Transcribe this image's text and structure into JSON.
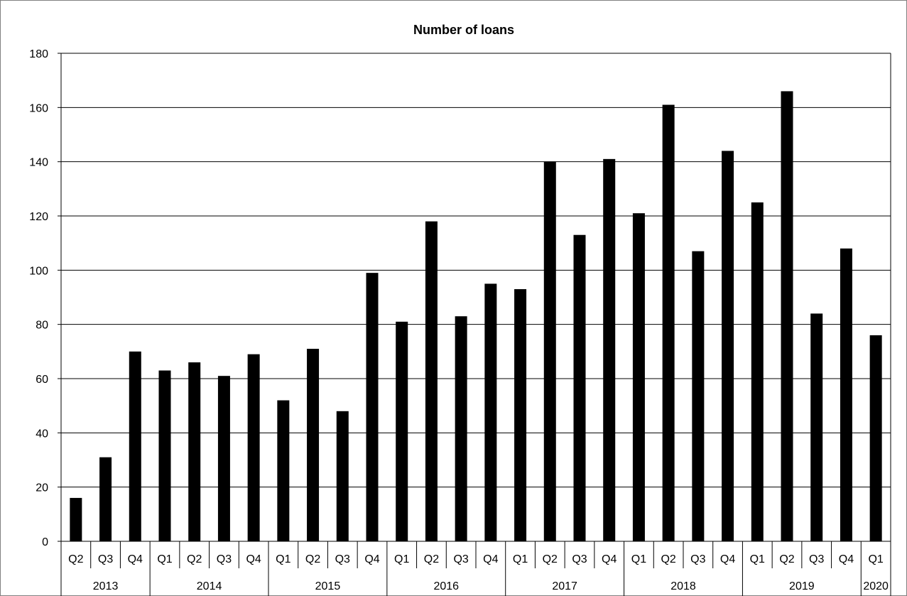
{
  "chart_data": {
    "type": "bar",
    "title": "Number of loans",
    "xlabel": "",
    "ylabel": "",
    "ylim": [
      0,
      180
    ],
    "yticks": [
      0,
      20,
      40,
      60,
      80,
      100,
      120,
      140,
      160,
      180
    ],
    "grid": true,
    "legend": "none",
    "categories": [
      "Q2",
      "Q3",
      "Q4",
      "Q1",
      "Q2",
      "Q3",
      "Q4",
      "Q1",
      "Q2",
      "Q3",
      "Q4",
      "Q1",
      "Q2",
      "Q3",
      "Q4",
      "Q1",
      "Q2",
      "Q3",
      "Q4",
      "Q1",
      "Q2",
      "Q3",
      "Q4",
      "Q1",
      "Q2",
      "Q3",
      "Q4",
      "Q1"
    ],
    "year_groups": [
      {
        "label": "2013",
        "count": 3
      },
      {
        "label": "2014",
        "count": 4
      },
      {
        "label": "2015",
        "count": 4
      },
      {
        "label": "2016",
        "count": 4
      },
      {
        "label": "2017",
        "count": 4
      },
      {
        "label": "2018",
        "count": 4
      },
      {
        "label": "2019",
        "count": 4
      },
      {
        "label": "2020",
        "count": 1
      }
    ],
    "values": [
      16,
      31,
      70,
      63,
      66,
      61,
      69,
      52,
      71,
      48,
      99,
      81,
      118,
      83,
      95,
      93,
      140,
      113,
      141,
      121,
      161,
      107,
      144,
      125,
      166,
      84,
      108,
      76
    ],
    "colors": {
      "bar": "#000000",
      "grid": "#000000",
      "axis": "#000000"
    }
  }
}
